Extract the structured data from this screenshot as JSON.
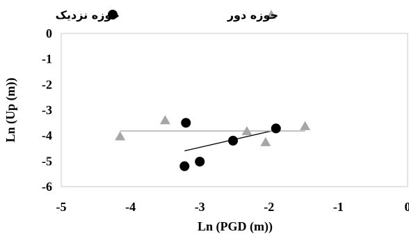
{
  "chart_data": {
    "type": "scatter",
    "xlabel": "Ln (PGD (m))",
    "ylabel": "Ln (Up (m))",
    "xlim": [
      -5,
      0
    ],
    "ylim": [
      -6,
      0
    ],
    "xticks": [
      "-5",
      "-4",
      "-3",
      "-2",
      "-1",
      "0"
    ],
    "yticks": [
      "0",
      "-1",
      "-2",
      "-3",
      "-4",
      "-5",
      "-6"
    ],
    "grid": false,
    "legend_position": "top",
    "series": [
      {
        "name": "حوزه نزدیک",
        "marker": "circle",
        "color": "#000000",
        "points": [
          {
            "x": -3.2,
            "y": -3.5
          },
          {
            "x": -3.22,
            "y": -5.2
          },
          {
            "x": -3.0,
            "y": -5.02
          },
          {
            "x": -2.52,
            "y": -4.2
          },
          {
            "x": -1.9,
            "y": -3.72
          }
        ],
        "trendline": {
          "x": [
            -3.22,
            -1.9
          ],
          "y": [
            -4.6,
            -3.78
          ],
          "color": "#000000"
        }
      },
      {
        "name": "حوزه دور",
        "marker": "triangle",
        "color": "#a6a6a6",
        "points": [
          {
            "x": -4.15,
            "y": -4.05
          },
          {
            "x": -3.5,
            "y": -3.42
          },
          {
            "x": -2.32,
            "y": -3.85
          },
          {
            "x": -2.05,
            "y": -4.28
          },
          {
            "x": -1.48,
            "y": -3.65
          }
        ],
        "trendline": {
          "x": [
            -4.15,
            -1.48
          ],
          "y": [
            -3.82,
            -3.82
          ],
          "color": "#a6a6a6"
        }
      }
    ]
  }
}
